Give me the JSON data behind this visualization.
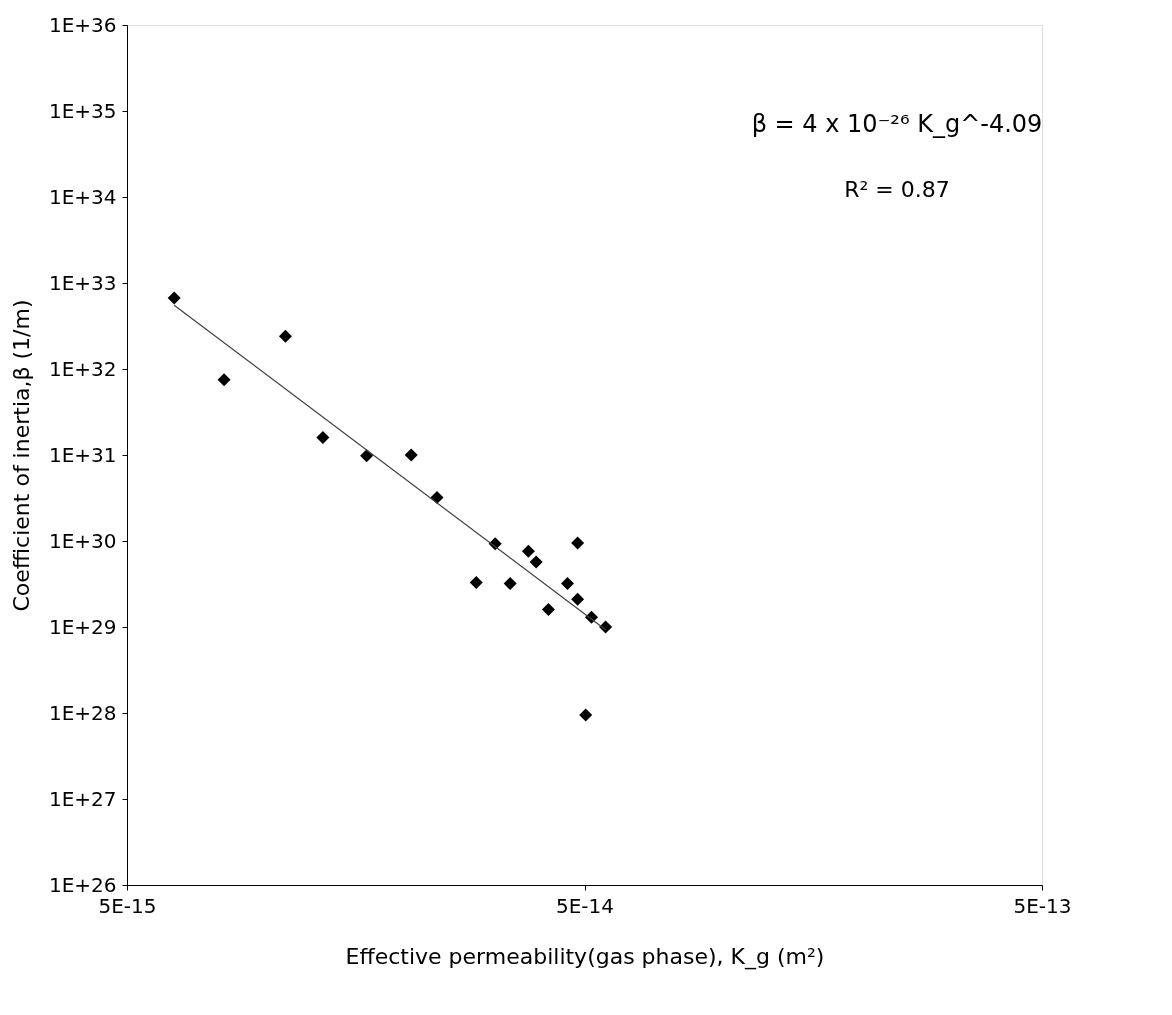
{
  "chart_data": {
    "type": "scatter",
    "xlabel": "Effective permeability(gas phase), K_g (m²)",
    "ylabel": "Coefficient of inertia,β (1/m)",
    "log": "xy",
    "grid": false,
    "marker": "diamond",
    "xlim": [
      5e-15,
      5e-13
    ],
    "xticks": [
      {
        "value": 5e-15,
        "label": "5E-15"
      },
      {
        "value": 5e-14,
        "label": "5E-14"
      },
      {
        "value": 5e-13,
        "label": "5E-13"
      }
    ],
    "ylim": [
      1e+26,
      1e+36
    ],
    "yticks": [
      {
        "value": 1e+26,
        "label": "1E+26"
      },
      {
        "value": 1e+27,
        "label": "1E+27"
      },
      {
        "value": 1e+28,
        "label": "1E+28"
      },
      {
        "value": 1e+29,
        "label": "1E+29"
      },
      {
        "value": 1e+30,
        "label": "1E+30"
      },
      {
        "value": 1e+31,
        "label": "1E+31"
      },
      {
        "value": 1e+32,
        "label": "1E+32"
      },
      {
        "value": 1e+33,
        "label": "1E+33"
      },
      {
        "value": 1e+34,
        "label": "1E+34"
      },
      {
        "value": 1e+35,
        "label": "1E+35"
      },
      {
        "value": 1e+36,
        "label": "1E+36"
      }
    ],
    "annotations": [
      "β = 4 x 10⁻²⁶ K_g^-4.09",
      "R² = 0.87"
    ],
    "series": [
      {
        "type": "scatter",
        "color": "#000000",
        "x": [
          6.34e-15,
          8.15e-15,
          1.11e-14,
          1.34e-14,
          1.67e-14,
          2.09e-14,
          2.38e-14,
          2.9e-14,
          3.19e-14,
          3.44e-14,
          3.77e-14,
          3.92e-14,
          4.17e-14,
          4.59e-14,
          4.83e-14,
          4.83e-14,
          5.03e-14,
          5.18e-14,
          5.56e-14
        ],
        "values": [
          6.7e+32,
          7.5e+31,
          2.4e+32,
          1.6e+31,
          9.8e+30,
          1e+31,
          3.2e+30,
          3.3e+29,
          9.3e+29,
          3.2e+29,
          7.6e+29,
          5.7e+29,
          1.6e+29,
          3.2e+29,
          9.5e+29,
          2.1e+29,
          9.5e+27,
          1.3e+29,
          1e+29
        ]
      },
      {
        "type": "line",
        "color": "#404040",
        "line_style": "solid",
        "marker": "none",
        "x": [
          6.34e-15,
          5.56e-14
        ],
        "values": [
          5.5e+32,
          9.3e+28
        ]
      }
    ]
  }
}
